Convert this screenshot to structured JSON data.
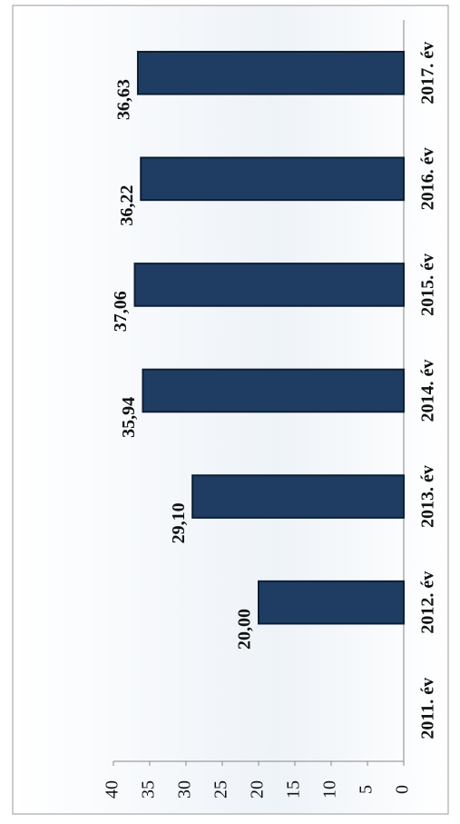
{
  "chart_data": {
    "type": "bar",
    "categories": [
      "2011. év",
      "2012. év",
      "2013. év",
      "2014. év",
      "2015. év",
      "2016. év",
      "2017. év"
    ],
    "values": [
      null,
      20.0,
      29.1,
      35.94,
      37.06,
      36.22,
      36.63
    ],
    "value_labels": [
      null,
      "20,00",
      "29,10",
      "35,94",
      "37,06",
      "36,22",
      "36,63"
    ],
    "color": "#1f3d63",
    "ylim": [
      0,
      40
    ],
    "yticks": [
      0,
      5,
      10,
      15,
      20,
      25,
      30,
      35,
      40
    ],
    "grid": false
  }
}
